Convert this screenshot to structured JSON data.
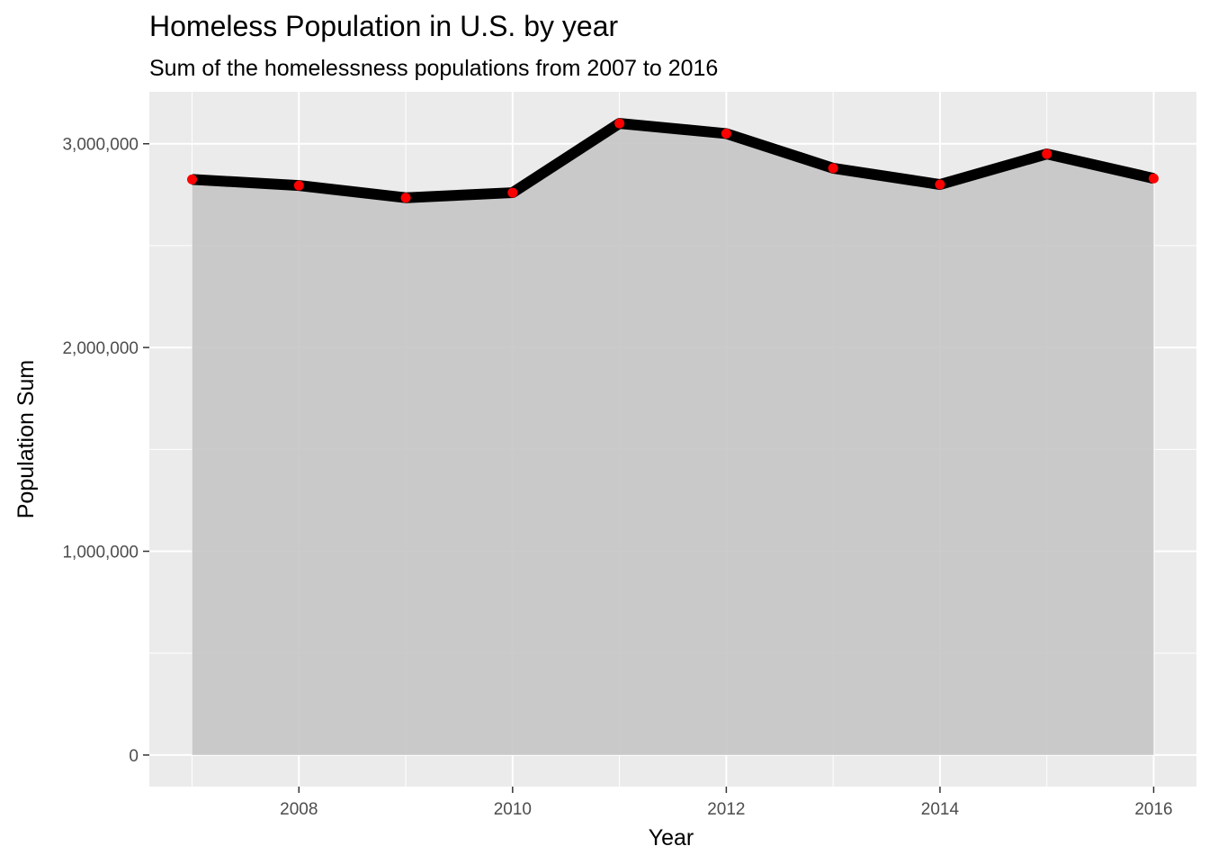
{
  "chart_data": {
    "type": "area",
    "title": "Homeless Population in U.S. by year",
    "subtitle": "Sum of the homelessness populations from 2007 to 2016",
    "xlabel": "Year",
    "ylabel": "Population Sum",
    "x": [
      2007,
      2008,
      2009,
      2010,
      2011,
      2012,
      2013,
      2014,
      2015,
      2016
    ],
    "series": [
      {
        "values": [
          2825000,
          2795000,
          2735000,
          2760000,
          3100000,
          3050000,
          2880000,
          2800000,
          2950000,
          2830000
        ]
      }
    ],
    "x_ticks": [
      2008,
      2010,
      2012,
      2014,
      2016
    ],
    "x_tick_labels": [
      "2008",
      "2010",
      "2012",
      "2014",
      "2016"
    ],
    "y_ticks": [
      0,
      1000000,
      2000000,
      3000000
    ],
    "y_tick_labels": [
      "0",
      "1,000,000",
      "2,000,000",
      "3,000,000"
    ],
    "xlim": [
      2006.6,
      2016.4
    ],
    "ylim": [
      -155000,
      3255000
    ],
    "grid": true,
    "colors": {
      "panel": "#ebebeb",
      "grid": "#ffffff",
      "area": "#c4c4c4",
      "line": "#000000",
      "points": "#ff0000"
    }
  }
}
